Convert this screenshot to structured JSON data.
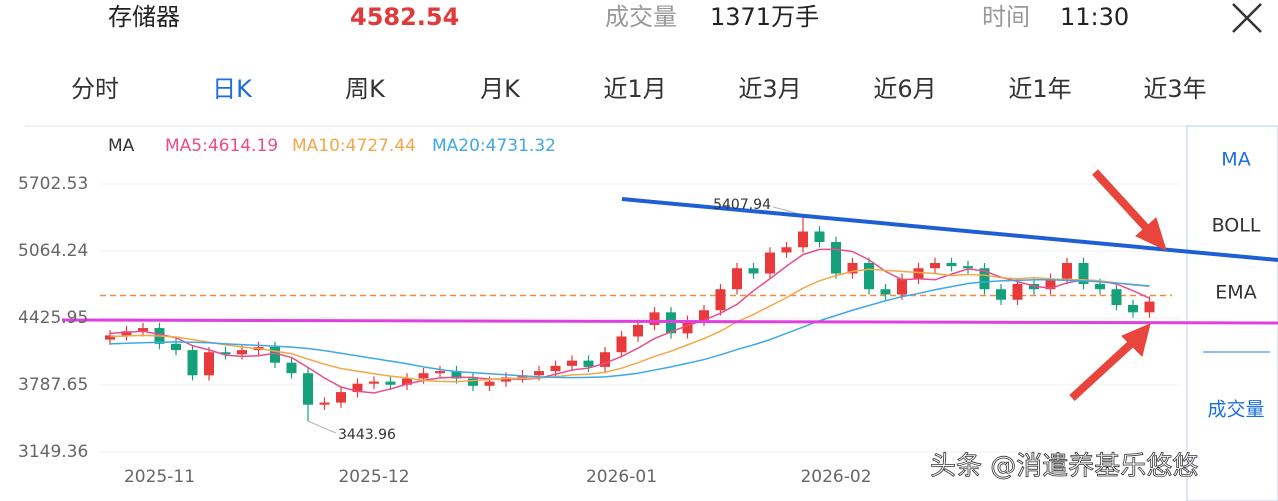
{
  "header": {
    "name": "存储器",
    "price": "4582.54",
    "volume_label": "成交量",
    "volume": "1371万手",
    "time_label": "时间",
    "time": "11:30"
  },
  "tabs": [
    "分时",
    "日K",
    "周K",
    "月K",
    "近1月",
    "近3月",
    "近6月",
    "近1年",
    "近3年"
  ],
  "side_menu": [
    "MA",
    "BOLL",
    "EMA",
    "成交量"
  ],
  "indicator_label": "MA",
  "watermark": "头条 @消遣养基乐悠悠",
  "chart_data": {
    "type": "candlestick",
    "categories": [
      null,
      null,
      null,
      "2025-11",
      null,
      null,
      null,
      null,
      null,
      null,
      null,
      null,
      null,
      null,
      null,
      null,
      "2025-12",
      null,
      null,
      null,
      null,
      null,
      null,
      null,
      null,
      null,
      null,
      null,
      null,
      null,
      null,
      "2026-01",
      null,
      null,
      null,
      null,
      null,
      null,
      null,
      null,
      null,
      null,
      null,
      null,
      "2026-02",
      null,
      null,
      null,
      null,
      null,
      null,
      null,
      null,
      null,
      null,
      null,
      null,
      null,
      null,
      null,
      null,
      null,
      null,
      null
    ],
    "open": [
      4220,
      4260,
      4300,
      4330,
      4180,
      4120,
      3880,
      4100,
      4080,
      4120,
      4150,
      4000,
      3900,
      3600,
      3620,
      3720,
      3800,
      3820,
      3790,
      3850,
      3900,
      3920,
      3850,
      3780,
      3820,
      3860,
      3880,
      3920,
      3970,
      4020,
      3960,
      4100,
      4250,
      4360,
      4480,
      4280,
      4400,
      4500,
      4700,
      4900,
      4850,
      5050,
      5100,
      5250,
      5150,
      4850,
      4950,
      4700,
      4650,
      4800,
      4900,
      4950,
      4920,
      4900,
      4700,
      4600,
      4750,
      4700,
      4800,
      4950,
      4750,
      4700,
      4550,
      4480
    ],
    "close": [
      4260,
      4300,
      4330,
      4180,
      4120,
      3880,
      4100,
      4080,
      4120,
      4150,
      4000,
      3900,
      3600,
      3620,
      3720,
      3800,
      3820,
      3790,
      3850,
      3900,
      3920,
      3850,
      3780,
      3820,
      3860,
      3880,
      3920,
      3970,
      4020,
      3960,
      4100,
      4250,
      4360,
      4480,
      4280,
      4400,
      4500,
      4700,
      4900,
      4850,
      5050,
      5100,
      5250,
      5150,
      4850,
      4950,
      4700,
      4650,
      4800,
      4900,
      4950,
      4920,
      4900,
      4700,
      4600,
      4750,
      4700,
      4800,
      4950,
      4750,
      4700,
      4550,
      4480,
      4582.54
    ],
    "high": [
      4310,
      4350,
      4380,
      4380,
      4230,
      4170,
      4150,
      4150,
      4170,
      4200,
      4200,
      4050,
      3950,
      3670,
      3770,
      3850,
      3870,
      3870,
      3900,
      3950,
      3970,
      3970,
      3900,
      3870,
      3910,
      3930,
      3970,
      4020,
      4070,
      4070,
      4150,
      4300,
      4410,
      4530,
      4530,
      4450,
      4550,
      4750,
      4950,
      4950,
      5100,
      5150,
      5407.94,
      5300,
      5200,
      5000,
      5000,
      4750,
      4850,
      4950,
      5000,
      5000,
      4970,
      4950,
      4750,
      4800,
      4800,
      4850,
      5000,
      5000,
      4800,
      4750,
      4600,
      4632
    ],
    "low": [
      4170,
      4210,
      4250,
      4130,
      4070,
      3830,
      3830,
      4030,
      4030,
      4070,
      3950,
      3850,
      3443.96,
      3550,
      3570,
      3670,
      3750,
      3740,
      3740,
      3800,
      3850,
      3800,
      3730,
      3730,
      3770,
      3810,
      3830,
      3870,
      3920,
      3910,
      3910,
      4050,
      4200,
      4310,
      4230,
      4230,
      4350,
      4450,
      4650,
      4800,
      4800,
      5000,
      5050,
      5100,
      4800,
      4800,
      4650,
      4600,
      4600,
      4750,
      4850,
      4870,
      4850,
      4650,
      4550,
      4550,
      4650,
      4650,
      4750,
      4700,
      4650,
      4500,
      4430,
      4430
    ],
    "up_color": "#e83a3a",
    "down_color": "#14a07a",
    "series": [
      {
        "name": "MA5",
        "label": "MA5:4614.19",
        "color": "#ec4c8c",
        "values": [
          4280,
          4290,
          4300,
          4270,
          4238,
          4162,
          4122,
          4072,
          4060,
          4066,
          4090,
          4050,
          3954,
          3854,
          3768,
          3728,
          3712,
          3750,
          3796,
          3832,
          3856,
          3862,
          3860,
          3844,
          3846,
          3842,
          3852,
          3890,
          3930,
          3950,
          3994,
          4060,
          4138,
          4230,
          4294,
          4354,
          4404,
          4472,
          4556,
          4686,
          4800,
          4920,
          5030,
          5080,
          5080,
          5060,
          4980,
          4870,
          4790,
          4800,
          4790,
          4844,
          4894,
          4874,
          4814,
          4774,
          4730,
          4710,
          4760,
          4790,
          4780,
          4750,
          4686,
          4614.19
        ]
      },
      {
        "name": "MA10",
        "label": "MA10:4727.44",
        "color": "#f2a84a",
        "values": [
          4250,
          4255,
          4260,
          4255,
          4245,
          4220,
          4195,
          4170,
          4150,
          4135,
          4110,
          4085,
          4035,
          3985,
          3945,
          3920,
          3895,
          3872,
          3856,
          3830,
          3822,
          3818,
          3830,
          3840,
          3850,
          3852,
          3856,
          3866,
          3884,
          3890,
          3908,
          3948,
          4000,
          4060,
          4110,
          4170,
          4230,
          4300,
          4390,
          4460,
          4540,
          4620,
          4710,
          4780,
          4830,
          4870,
          4890,
          4880,
          4870,
          4860,
          4850,
          4830,
          4840,
          4835,
          4810,
          4800,
          4810,
          4800,
          4790,
          4790,
          4780,
          4760,
          4740,
          4727.44
        ]
      },
      {
        "name": "MA20",
        "label": "MA20:4731.32",
        "color": "#3fa8e6",
        "values": [
          4180,
          4185,
          4190,
          4195,
          4198,
          4195,
          4190,
          4180,
          4172,
          4165,
          4158,
          4148,
          4135,
          4115,
          4090,
          4065,
          4040,
          4015,
          3990,
          3960,
          3935,
          3915,
          3905,
          3895,
          3885,
          3875,
          3865,
          3860,
          3858,
          3860,
          3865,
          3880,
          3900,
          3930,
          3960,
          3995,
          4030,
          4075,
          4125,
          4170,
          4220,
          4280,
          4340,
          4400,
          4450,
          4500,
          4545,
          4590,
          4630,
          4660,
          4695,
          4725,
          4755,
          4770,
          4780,
          4785,
          4790,
          4790,
          4785,
          4780,
          4770,
          4760,
          4745,
          4731.32
        ]
      }
    ],
    "price_line": 4640,
    "price_line_color": "#f08a3c",
    "ylim": [
      3054,
      5836
    ],
    "yticks": [
      3149.36,
      3787.65,
      4425.95,
      5064.24,
      5702.53
    ]
  }
}
